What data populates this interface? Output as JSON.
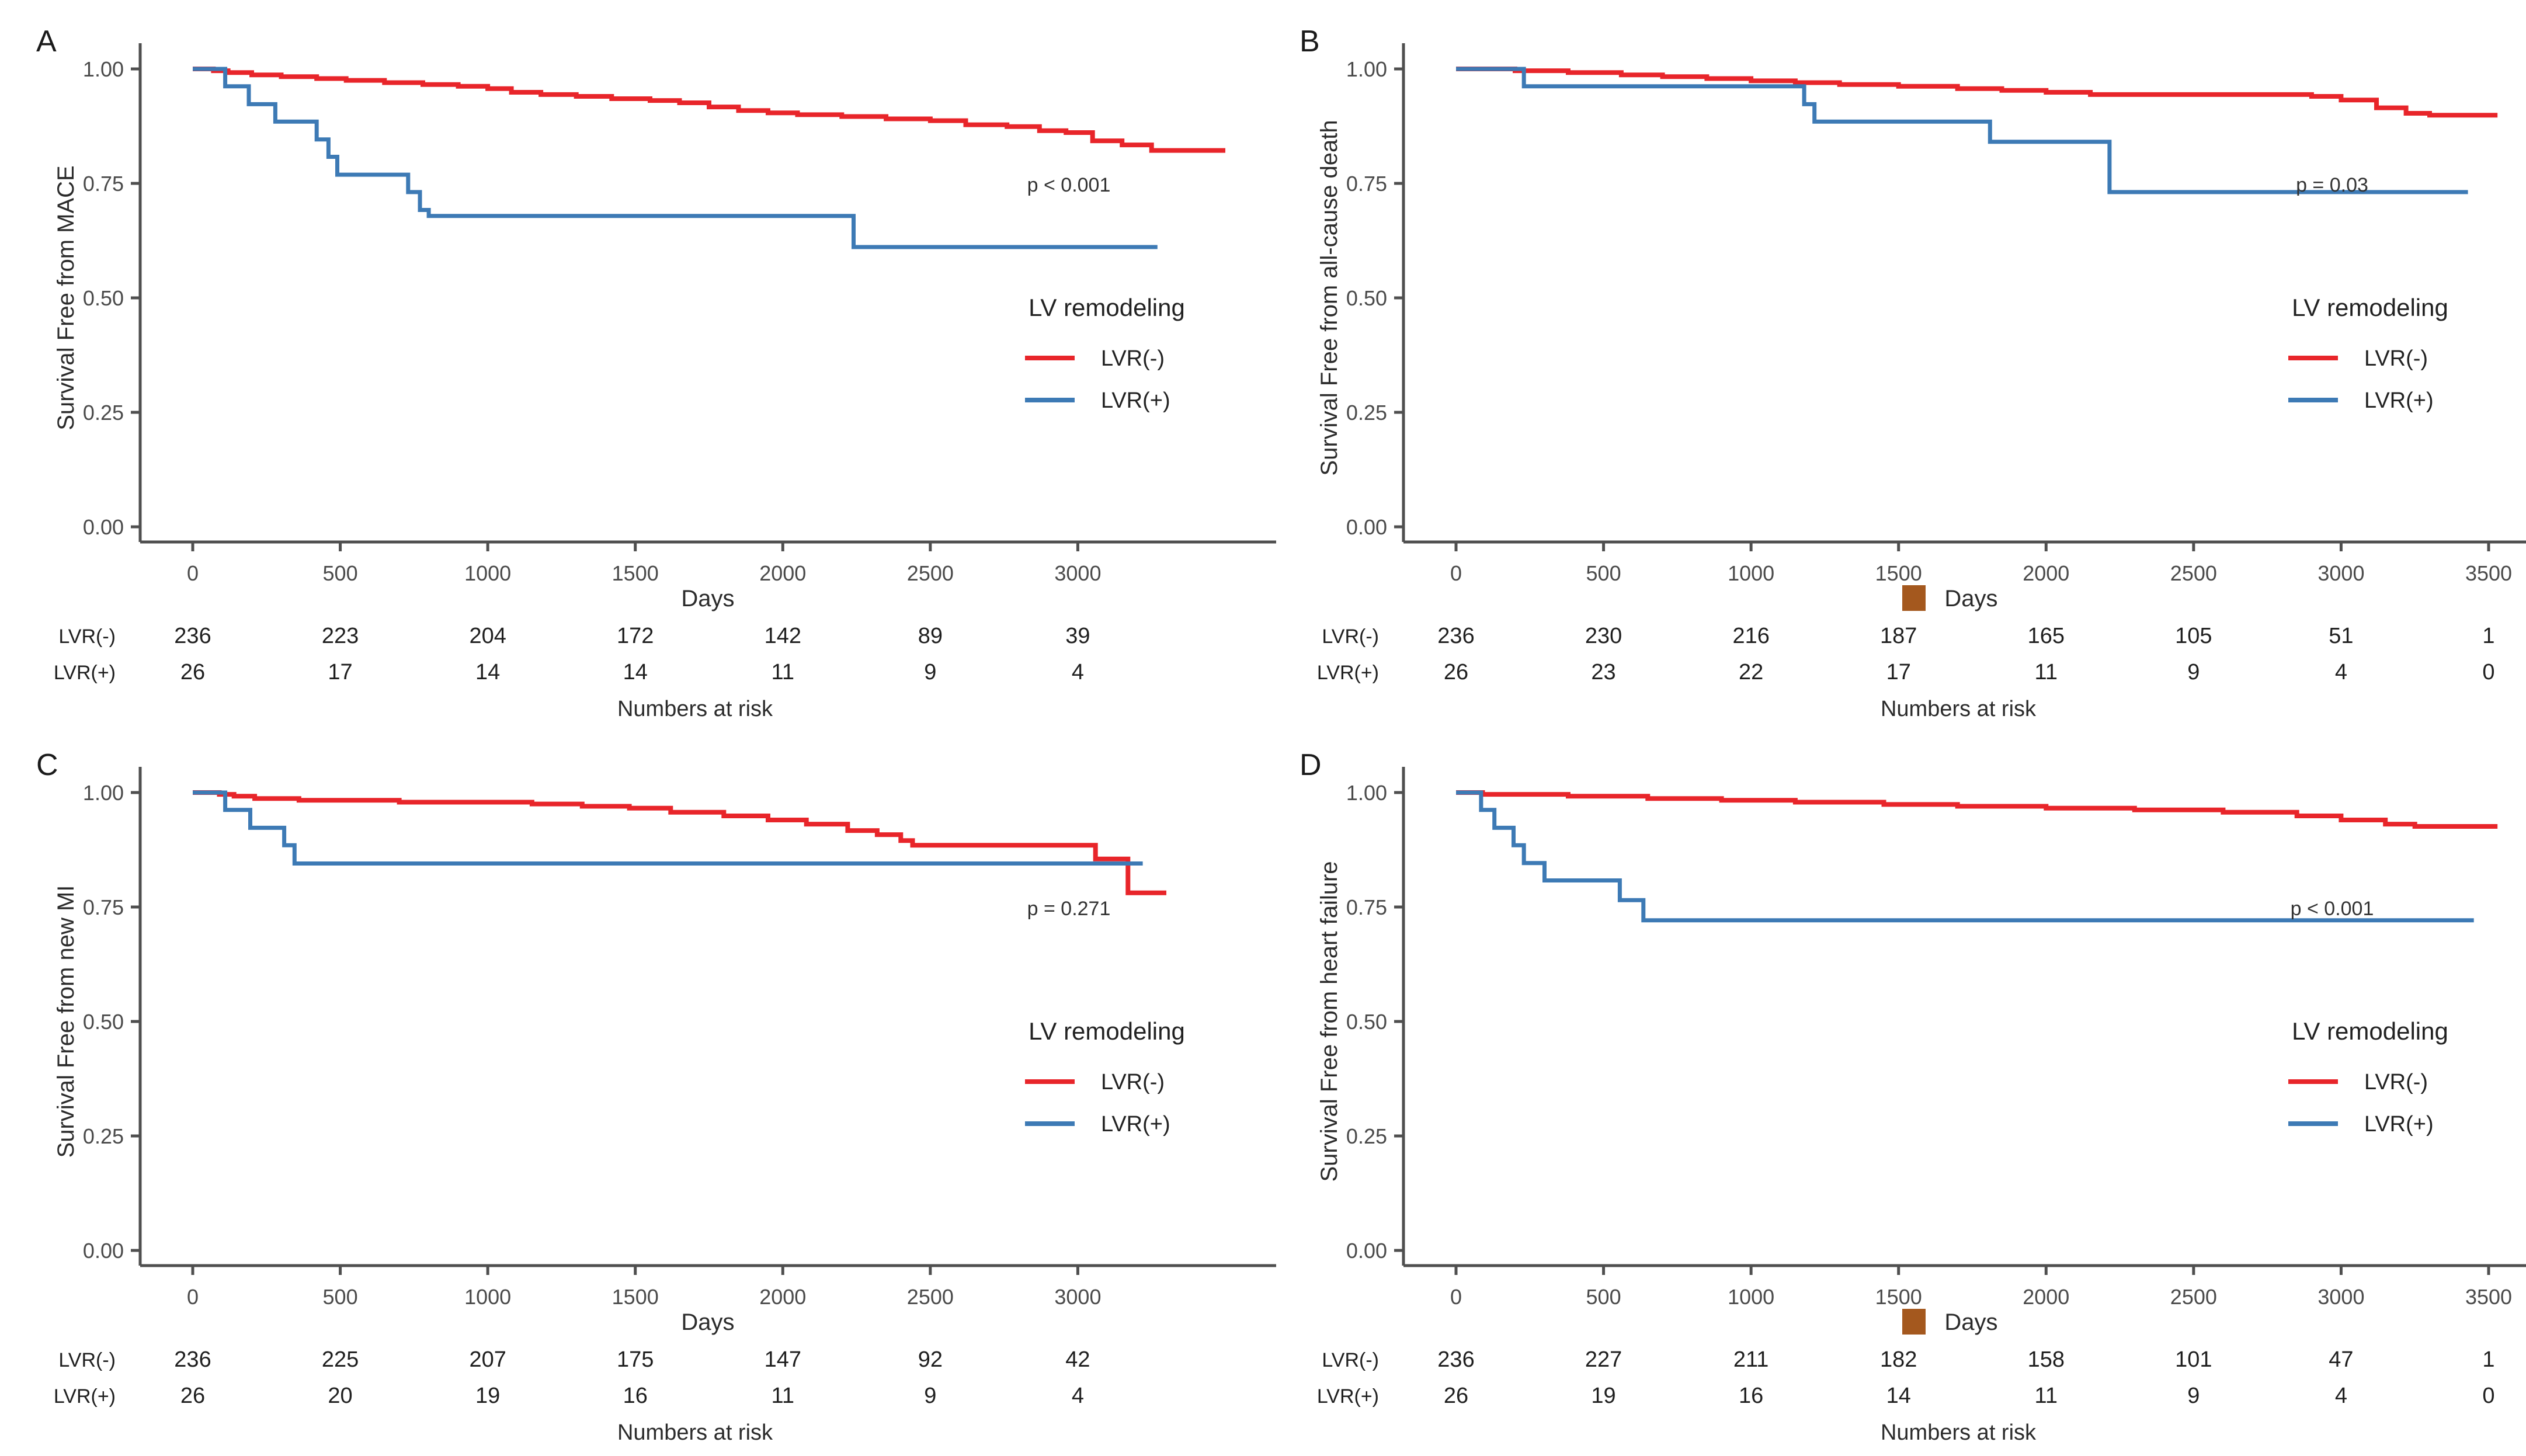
{
  "figure": {
    "type": "kaplan-meier-survival-figure",
    "background": "#ffffff",
    "x_label": "Days",
    "risk_footer": "Numbers at risk",
    "legend_title": "LV remodeling",
    "colors": {
      "lvr_neg": "#e8252a",
      "lvr_pos": "#3d7ab5",
      "axis": "#4f4f4f",
      "tick_text": "#4a4a4a",
      "risk_text": "#1f1f1f",
      "p_text": "#333333",
      "artifact_orange": "#a4581e"
    }
  },
  "chart_data": [
    {
      "panel": "A",
      "type": "line",
      "subtype": "km-step",
      "ylabel": "Survival Free from MACE",
      "xlabel": "Days",
      "p_value": "p < 0.001",
      "x_ticks": [
        0,
        500,
        1000,
        1500,
        2000,
        2500,
        3000
      ],
      "y_ticks": [
        "1.00",
        "0.75",
        "0.50",
        "0.25",
        "0.00"
      ],
      "xlim": [
        0,
        3700
      ],
      "ylim": [
        0,
        1
      ],
      "grid": "off",
      "legend_position": "right-middle",
      "legend_title": "LV remodeling",
      "days_artifact": false,
      "series": [
        {
          "name": "LVR(-)",
          "color": "#e8252a",
          "steps": [
            [
              0,
              1
            ],
            [
              70,
              0.996
            ],
            [
              120,
              0.992
            ],
            [
              200,
              0.987
            ],
            [
              300,
              0.983
            ],
            [
              420,
              0.979
            ],
            [
              520,
              0.975
            ],
            [
              650,
              0.97
            ],
            [
              780,
              0.966
            ],
            [
              900,
              0.962
            ],
            [
              1000,
              0.957
            ],
            [
              1080,
              0.949
            ],
            [
              1180,
              0.944
            ],
            [
              1300,
              0.94
            ],
            [
              1420,
              0.935
            ],
            [
              1550,
              0.931
            ],
            [
              1650,
              0.926
            ],
            [
              1750,
              0.917
            ],
            [
              1850,
              0.909
            ],
            [
              1950,
              0.904
            ],
            [
              2050,
              0.9
            ],
            [
              2200,
              0.896
            ],
            [
              2350,
              0.891
            ],
            [
              2500,
              0.887
            ],
            [
              2620,
              0.878
            ],
            [
              2760,
              0.874
            ],
            [
              2870,
              0.865
            ],
            [
              2960,
              0.861
            ],
            [
              3050,
              0.843
            ],
            [
              3150,
              0.834
            ],
            [
              3250,
              0.822
            ],
            [
              3500,
              0.822
            ]
          ]
        },
        {
          "name": "LVR(+)",
          "color": "#3d7ab5",
          "steps": [
            [
              0,
              1
            ],
            [
              110,
              0.962
            ],
            [
              190,
              0.923
            ],
            [
              280,
              0.885
            ],
            [
              420,
              0.846
            ],
            [
              460,
              0.808
            ],
            [
              490,
              0.769
            ],
            [
              700,
              0.769
            ],
            [
              730,
              0.731
            ],
            [
              770,
              0.692
            ],
            [
              800,
              0.679
            ],
            [
              2200,
              0.679
            ],
            [
              2240,
              0.611
            ],
            [
              3270,
              0.611
            ]
          ]
        }
      ],
      "risk_table": {
        "rows": [
          {
            "label": "LVR(-)",
            "values": [
              236,
              223,
              204,
              172,
              142,
              89,
              39
            ]
          },
          {
            "label": "LVR(+)",
            "values": [
              26,
              17,
              14,
              14,
              11,
              9,
              4
            ]
          }
        ],
        "footer": "Numbers at risk"
      }
    },
    {
      "panel": "B",
      "type": "line",
      "subtype": "km-step",
      "ylabel": "Survival Free from all-cause death",
      "xlabel": "Days",
      "p_value": "p = 0.03",
      "x_ticks": [
        0,
        500,
        1000,
        1500,
        2000,
        2500,
        3000,
        3500
      ],
      "y_ticks": [
        "1.00",
        "0.75",
        "0.50",
        "0.25",
        "0.00"
      ],
      "xlim": [
        0,
        3700
      ],
      "ylim": [
        0,
        1
      ],
      "grid": "off",
      "legend_position": "right-middle",
      "legend_title": "LV remodeling",
      "days_artifact": true,
      "series": [
        {
          "name": "LVR(-)",
          "color": "#e8252a",
          "steps": [
            [
              0,
              1
            ],
            [
              200,
              0.996
            ],
            [
              380,
              0.992
            ],
            [
              560,
              0.987
            ],
            [
              700,
              0.983
            ],
            [
              850,
              0.979
            ],
            [
              1000,
              0.974
            ],
            [
              1150,
              0.97
            ],
            [
              1300,
              0.966
            ],
            [
              1500,
              0.962
            ],
            [
              1700,
              0.957
            ],
            [
              1850,
              0.953
            ],
            [
              2000,
              0.949
            ],
            [
              2150,
              0.944
            ],
            [
              2900,
              0.94
            ],
            [
              3000,
              0.932
            ],
            [
              3120,
              0.915
            ],
            [
              3220,
              0.903
            ],
            [
              3300,
              0.899
            ],
            [
              3530,
              0.899
            ]
          ]
        },
        {
          "name": "LVR(+)",
          "color": "#3d7ab5",
          "steps": [
            [
              0,
              1
            ],
            [
              230,
              0.962
            ],
            [
              1180,
              0.923
            ],
            [
              1215,
              0.885
            ],
            [
              1810,
              0.841
            ],
            [
              2215,
              0.731
            ],
            [
              3430,
              0.731
            ]
          ]
        }
      ],
      "risk_table": {
        "rows": [
          {
            "label": "LVR(-)",
            "values": [
              236,
              230,
              216,
              187,
              165,
              105,
              51,
              1
            ]
          },
          {
            "label": "LVR(+)",
            "values": [
              26,
              23,
              22,
              17,
              11,
              9,
              4,
              0
            ]
          }
        ],
        "footer": "Numbers at risk"
      }
    },
    {
      "panel": "C",
      "type": "line",
      "subtype": "km-step",
      "ylabel": "Survival Free from new MI",
      "xlabel": "Days",
      "p_value": "p = 0.271",
      "x_ticks": [
        0,
        500,
        1000,
        1500,
        2000,
        2500,
        3000
      ],
      "y_ticks": [
        "1.00",
        "0.75",
        "0.50",
        "0.25",
        "0.00"
      ],
      "xlim": [
        0,
        3700
      ],
      "ylim": [
        0,
        1
      ],
      "grid": "off",
      "legend_position": "right-middle",
      "legend_title": "LV remodeling",
      "days_artifact": false,
      "series": [
        {
          "name": "LVR(-)",
          "color": "#e8252a",
          "steps": [
            [
              0,
              1
            ],
            [
              90,
              0.996
            ],
            [
              140,
              0.992
            ],
            [
              210,
              0.987
            ],
            [
              360,
              0.983
            ],
            [
              700,
              0.979
            ],
            [
              1150,
              0.975
            ],
            [
              1320,
              0.97
            ],
            [
              1480,
              0.966
            ],
            [
              1620,
              0.957
            ],
            [
              1800,
              0.949
            ],
            [
              1950,
              0.94
            ],
            [
              2080,
              0.931
            ],
            [
              2220,
              0.917
            ],
            [
              2320,
              0.908
            ],
            [
              2400,
              0.895
            ],
            [
              2440,
              0.885
            ],
            [
              3030,
              0.885
            ],
            [
              3060,
              0.855
            ],
            [
              3170,
              0.781
            ],
            [
              3300,
              0.781
            ]
          ]
        },
        {
          "name": "LVR(+)",
          "color": "#3d7ab5",
          "steps": [
            [
              0,
              1
            ],
            [
              110,
              0.962
            ],
            [
              195,
              0.923
            ],
            [
              310,
              0.885
            ],
            [
              345,
              0.845
            ],
            [
              3220,
              0.845
            ]
          ]
        }
      ],
      "risk_table": {
        "rows": [
          {
            "label": "LVR(-)",
            "values": [
              236,
              225,
              207,
              175,
              147,
              92,
              42
            ]
          },
          {
            "label": "LVR(+)",
            "values": [
              26,
              20,
              19,
              16,
              11,
              9,
              4
            ]
          }
        ],
        "footer": "Numbers at risk"
      }
    },
    {
      "panel": "D",
      "type": "line",
      "subtype": "km-step",
      "ylabel": "Survival Free from heart failure",
      "xlabel": "Days",
      "p_value": "p < 0.001",
      "x_ticks": [
        0,
        500,
        1000,
        1500,
        2000,
        2500,
        3000,
        3500
      ],
      "y_ticks": [
        "1.00",
        "0.75",
        "0.50",
        "0.25",
        "0.00"
      ],
      "xlim": [
        0,
        3700
      ],
      "ylim": [
        0,
        1
      ],
      "grid": "off",
      "legend_position": "right-middle",
      "legend_title": "LV remodeling",
      "days_artifact": true,
      "series": [
        {
          "name": "LVR(-)",
          "color": "#e8252a",
          "steps": [
            [
              0,
              1
            ],
            [
              90,
              0.996
            ],
            [
              380,
              0.992
            ],
            [
              650,
              0.987
            ],
            [
              900,
              0.983
            ],
            [
              1150,
              0.979
            ],
            [
              1450,
              0.974
            ],
            [
              1700,
              0.97
            ],
            [
              2000,
              0.966
            ],
            [
              2300,
              0.962
            ],
            [
              2600,
              0.957
            ],
            [
              2850,
              0.949
            ],
            [
              3000,
              0.94
            ],
            [
              3150,
              0.931
            ],
            [
              3250,
              0.926
            ],
            [
              3530,
              0.926
            ]
          ]
        },
        {
          "name": "LVR(+)",
          "color": "#3d7ab5",
          "steps": [
            [
              0,
              1
            ],
            [
              85,
              0.962
            ],
            [
              130,
              0.923
            ],
            [
              195,
              0.885
            ],
            [
              230,
              0.846
            ],
            [
              300,
              0.808
            ],
            [
              555,
              0.765
            ],
            [
              635,
              0.721
            ],
            [
              3450,
              0.721
            ]
          ]
        }
      ],
      "risk_table": {
        "rows": [
          {
            "label": "LVR(-)",
            "values": [
              236,
              227,
              211,
              182,
              158,
              101,
              47,
              1
            ]
          },
          {
            "label": "LVR(+)",
            "values": [
              26,
              19,
              16,
              14,
              11,
              9,
              4,
              0
            ]
          }
        ],
        "footer": "Numbers at risk"
      }
    }
  ],
  "legend": {
    "title": "LV remodeling",
    "entries": [
      {
        "label": "LVR(-)",
        "color": "#e8252a"
      },
      {
        "label": "LVR(+)",
        "color": "#3d7ab5"
      }
    ]
  }
}
